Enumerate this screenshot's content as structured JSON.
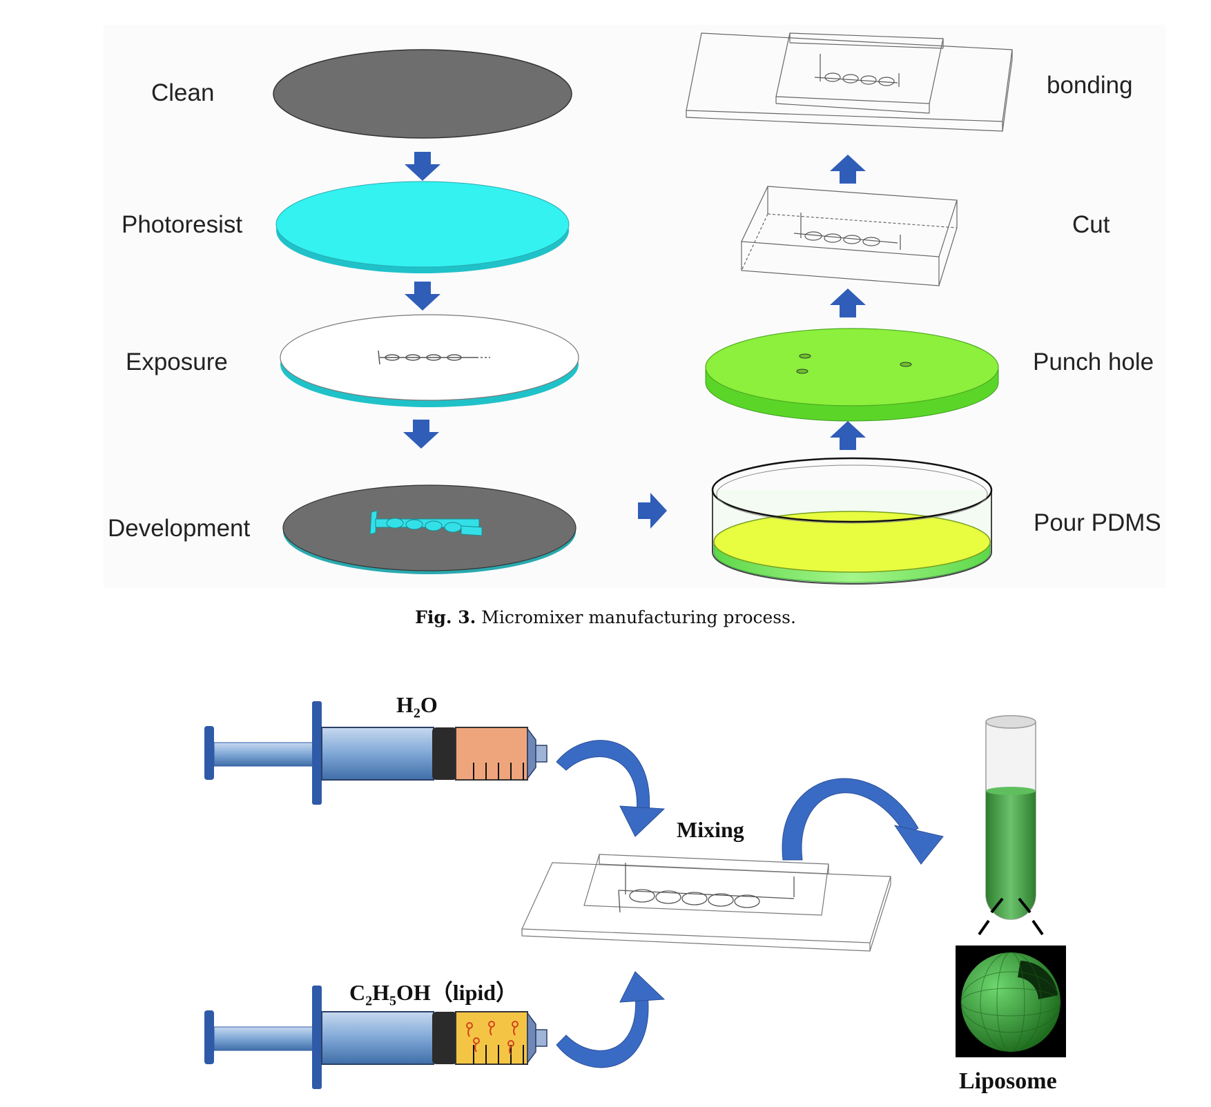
{
  "figure3": {
    "steps_left": [
      "Clean",
      "Photoresist",
      "Exposure",
      "Development"
    ],
    "steps_right": [
      "bonding",
      "Cut",
      "Punch hole",
      "Pour PDMS"
    ],
    "caption_label": "Fig. 3.",
    "caption_text": "Micromixer manufacturing process."
  },
  "scheme": {
    "water_main": "H",
    "water_sub": "2",
    "water_end": "O",
    "ethanol_c": "C",
    "ethanol_sub1": "2",
    "ethanol_h": "H",
    "ethanol_sub2": "5",
    "ethanol_end": "OH（lipid）",
    "mixing": "Mixing",
    "liposome": "Liposome"
  },
  "colors": {
    "wafer_gray": "#6e6e6e",
    "photoresist_cyan": "#33f2f0",
    "pdms_green": "#8cf03c",
    "arrow_blue": "#2f5db8",
    "liposome_green": "#3aa33a"
  }
}
